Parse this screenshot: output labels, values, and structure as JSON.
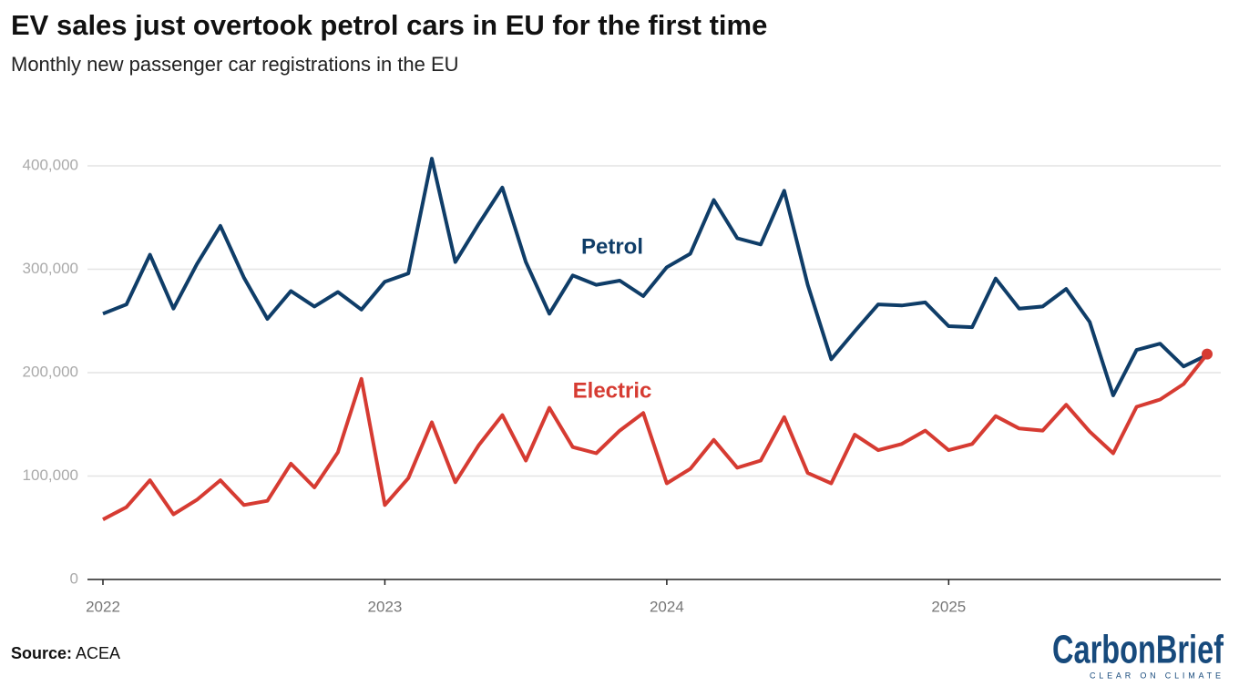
{
  "chart_data": {
    "type": "line",
    "title": "EV sales just overtook petrol cars in EU for the first time",
    "subtitle": "Monthly new passenger car registrations in the EU",
    "categories": [
      "2022",
      null,
      null,
      null,
      null,
      null,
      null,
      null,
      null,
      null,
      null,
      null,
      "2023",
      null,
      null,
      null,
      null,
      null,
      null,
      null,
      null,
      null,
      null,
      null,
      "2024",
      null,
      null,
      null,
      null,
      null,
      null,
      null,
      null,
      null,
      null,
      null,
      "2025",
      null,
      null,
      null,
      null,
      null,
      null,
      null,
      null,
      null,
      null,
      null
    ],
    "series": [
      {
        "name": "Petrol",
        "color": "#0f3d68",
        "values": [
          257000,
          266000,
          314000,
          262000,
          305000,
          342000,
          292000,
          252000,
          279000,
          264000,
          278000,
          261000,
          288000,
          296000,
          407000,
          307000,
          344000,
          379000,
          307000,
          257000,
          294000,
          285000,
          289000,
          274000,
          302000,
          315000,
          367000,
          330000,
          324000,
          376000,
          285000,
          213000,
          240000,
          266000,
          265000,
          268000,
          245000,
          244000,
          291000,
          262000,
          264000,
          281000,
          249000,
          178000,
          222000,
          228000,
          206000,
          217000
        ]
      },
      {
        "name": "Electric",
        "color": "#d63b32",
        "values": [
          58000,
          70000,
          96000,
          63000,
          77000,
          96000,
          72000,
          76000,
          112000,
          89000,
          123000,
          194000,
          72000,
          98000,
          152000,
          94000,
          130000,
          159000,
          115000,
          166000,
          128000,
          122000,
          144000,
          161000,
          93000,
          107000,
          135000,
          108000,
          115000,
          157000,
          103000,
          93000,
          140000,
          125000,
          131000,
          144000,
          125000,
          131000,
          158000,
          146000,
          144000,
          169000,
          143000,
          122000,
          167000,
          174000,
          189000,
          218000
        ]
      }
    ],
    "ylim": [
      0,
      430000
    ],
    "yticks": [
      0,
      {
        "value": 100000,
        "label": "100,000"
      },
      {
        "value": 200000,
        "label": "200,000"
      },
      {
        "value": 300000,
        "label": "300,000"
      },
      {
        "value": 400000,
        "label": "400,000"
      }
    ],
    "grid": true,
    "source_label": "Source:",
    "source": "ACEA",
    "logo": "CarbonBrief",
    "logo_tagline": "CLEAR ON CLIMATE"
  }
}
